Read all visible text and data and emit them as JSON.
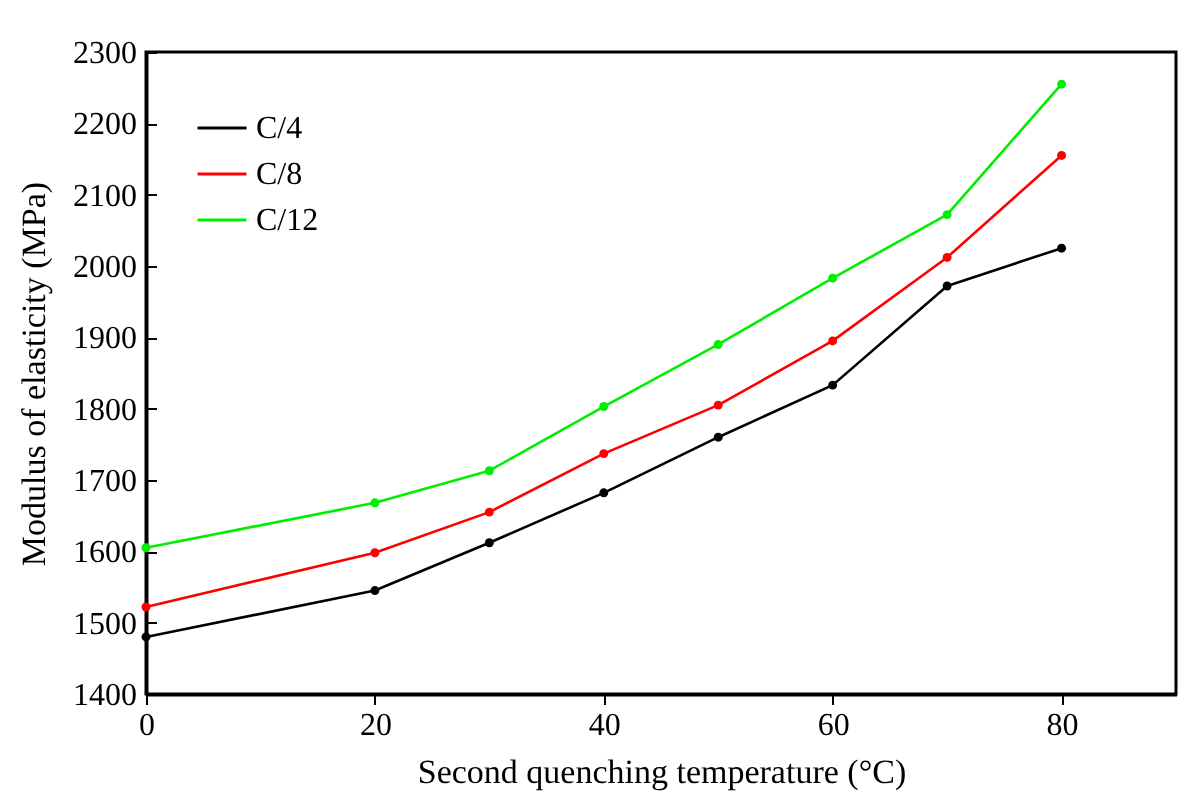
{
  "chart_data": {
    "type": "line",
    "xlabel": "Second quenching temperature (°C)",
    "ylabel": "Modulus of elasticity (MPa)",
    "x": [
      0,
      20,
      30,
      40,
      50,
      60,
      70,
      80
    ],
    "series": [
      {
        "name": "C/4",
        "color": "#000000",
        "values": [
          1480,
          1545,
          1612,
          1682,
          1760,
          1833,
          1972,
          2025
        ]
      },
      {
        "name": "C/8",
        "color": "#ff0000",
        "values": [
          1522,
          1598,
          1655,
          1737,
          1805,
          1895,
          2012,
          2155
        ]
      },
      {
        "name": "C/12",
        "color": "#00ee00",
        "values": [
          1605,
          1668,
          1713,
          1803,
          1890,
          1983,
          2072,
          2255
        ]
      }
    ],
    "xlim": [
      0,
      90
    ],
    "xticks": [
      0,
      20,
      40,
      60,
      80
    ],
    "ylim": [
      1400,
      2300
    ],
    "yticks": [
      1400,
      1500,
      1600,
      1700,
      1800,
      1900,
      2000,
      2100,
      2200,
      2300
    ],
    "grid": false,
    "legend": "top left",
    "marker": "circle",
    "line_style": "solid"
  }
}
